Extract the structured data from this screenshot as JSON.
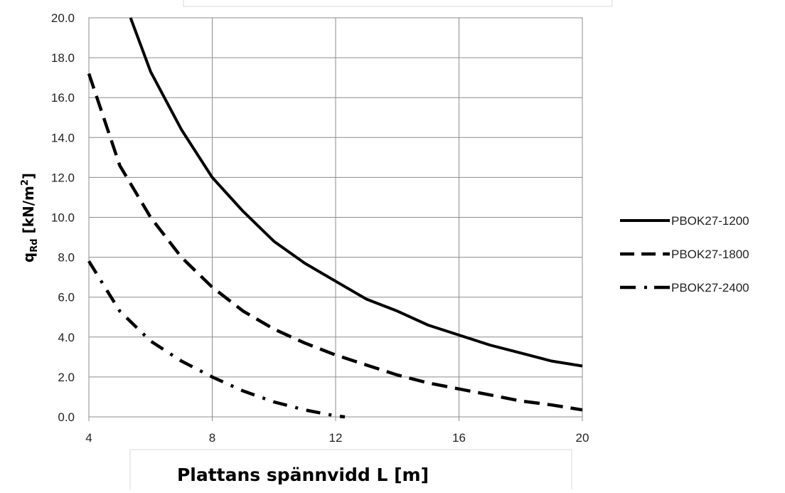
{
  "chart_data": {
    "type": "line",
    "xlabel": "Plattans spännvidd L [m]",
    "ylabel": {
      "main": "q",
      "sub": "Rd",
      "unit_prefix": " [kN/m",
      "unit_sup": "2",
      "unit_suffix": "]"
    },
    "xlim": [
      4,
      20
    ],
    "ylim": [
      0,
      20
    ],
    "x_ticks": [
      "4",
      "8",
      "12",
      "16",
      "20"
    ],
    "y_ticks": [
      "0.0",
      "2.0",
      "4.0",
      "6.0",
      "8.0",
      "10.0",
      "12.0",
      "14.0",
      "16.0",
      "18.0",
      "20.0"
    ],
    "grid": true,
    "legend_position": "right",
    "series": [
      {
        "name": "PBOK27-1200",
        "line_style": "solid",
        "color": "#000000",
        "x": [
          5.35,
          6,
          7,
          8,
          9,
          10,
          11,
          12,
          13,
          14,
          15,
          16,
          17,
          18,
          19,
          20
        ],
        "y": [
          20.0,
          17.3,
          14.4,
          12.0,
          10.3,
          8.8,
          7.7,
          6.8,
          5.9,
          5.3,
          4.6,
          4.1,
          3.6,
          3.2,
          2.8,
          2.55
        ]
      },
      {
        "name": "PBOK27-1800",
        "line_style": "dashed",
        "color": "#000000",
        "x": [
          4,
          5,
          6,
          7,
          8,
          9,
          10,
          11,
          12,
          13,
          14,
          15,
          16,
          17,
          18,
          19,
          20
        ],
        "y": [
          17.2,
          12.6,
          10.0,
          8.0,
          6.5,
          5.3,
          4.4,
          3.7,
          3.1,
          2.6,
          2.1,
          1.7,
          1.4,
          1.1,
          0.8,
          0.6,
          0.35
        ]
      },
      {
        "name": "PBOK27-2400",
        "line_style": "dash-dot",
        "color": "#000000",
        "x": [
          4,
          5,
          6,
          7,
          8,
          9,
          10,
          11,
          12,
          12.3
        ],
        "y": [
          7.8,
          5.3,
          3.8,
          2.8,
          2.0,
          1.3,
          0.75,
          0.35,
          0.05,
          0.0
        ]
      }
    ]
  }
}
